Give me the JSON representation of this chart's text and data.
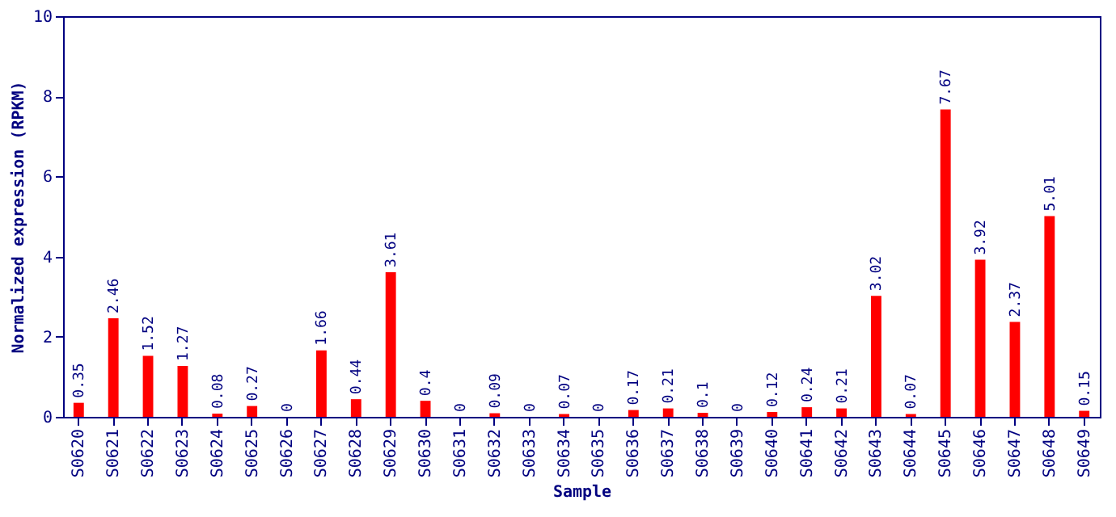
{
  "chart_data": {
    "type": "bar",
    "xlabel": "Sample",
    "ylabel": "Normalized expression (RPKM)",
    "categories": [
      "S0620",
      "S0621",
      "S0622",
      "S0623",
      "S0624",
      "S0625",
      "S0626",
      "S0627",
      "S0628",
      "S0629",
      "S0630",
      "S0631",
      "S0632",
      "S0633",
      "S0634",
      "S0635",
      "S0636",
      "S0637",
      "S0638",
      "S0639",
      "S0640",
      "S0641",
      "S0642",
      "S0643",
      "S0644",
      "S0645",
      "S0646",
      "S0647",
      "S0648",
      "S0649"
    ],
    "values": [
      0.35,
      2.46,
      1.52,
      1.27,
      0.08,
      0.27,
      0,
      1.66,
      0.44,
      3.61,
      0.4,
      0,
      0.09,
      0,
      0.07,
      0,
      0.17,
      0.21,
      0.1,
      0,
      0.12,
      0.24,
      0.21,
      3.02,
      0.07,
      7.67,
      3.92,
      2.37,
      5.01,
      0.15
    ],
    "color": "#ff0000",
    "ylim": [
      0,
      10
    ],
    "yticks": [
      0,
      2,
      4,
      6,
      8,
      10
    ],
    "data_labels": true,
    "grid": false
  }
}
